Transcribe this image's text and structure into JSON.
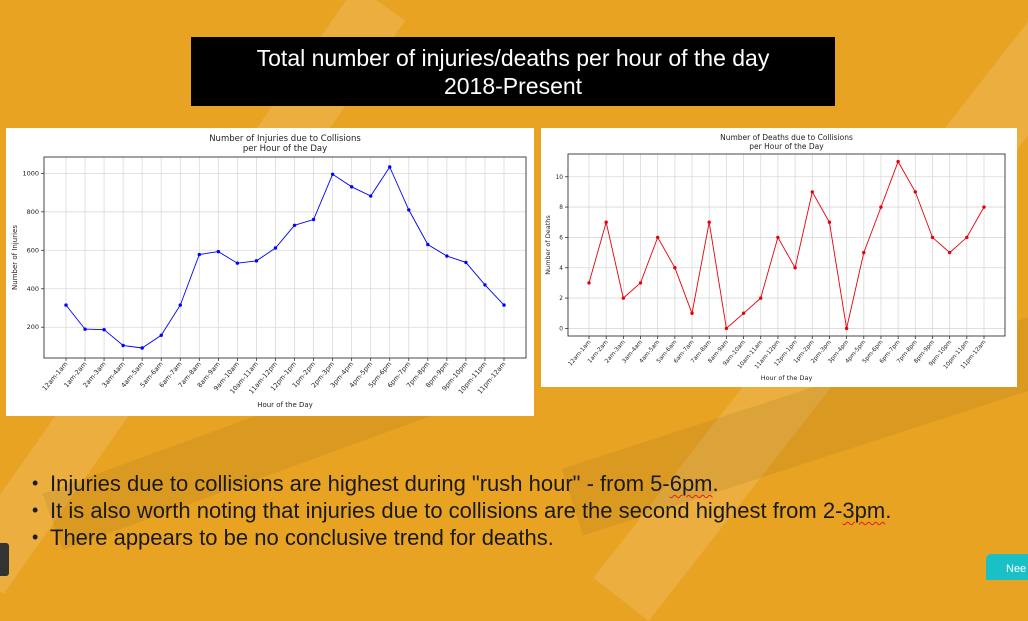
{
  "slide": {
    "title_line1": "Total number of injuries/deaths per hour of the day",
    "title_line2": "2018-Present",
    "bullets": {
      "b1_pre": "Injuries due to collisions are highest during \"rush hour\" - from 5-",
      "b1_mark": "6pm",
      "b1_post": ".",
      "b2_pre": "It is also worth noting that injuries due to collisions are the second highest from 2-",
      "b2_mark": "3pm",
      "b2_post": ".",
      "b3": "There appears to be no conclusive trend for deaths."
    },
    "corner_button_label": "Nee"
  },
  "chart_data": [
    {
      "type": "line",
      "title": "Number of Injuries due to Collisions\nper Hour of the Day",
      "xlabel": "Hour of the Day",
      "ylabel": "Number of Injuries",
      "color": "#0000ff",
      "grid": true,
      "categories": [
        "12am-1am",
        "1am-2am",
        "2am-3am",
        "3am-4am",
        "4am-5am",
        "5am-6am",
        "6am-7am",
        "7am-8am",
        "8am-9am",
        "9am-10am",
        "10am-11am",
        "11am-12pm",
        "12pm-1pm",
        "1pm-2pm",
        "2pm-3pm",
        "3pm-4pm",
        "4pm-5pm",
        "5pm-6pm",
        "6pm-7pm",
        "7pm-8pm",
        "8pm-9pm",
        "9pm-10pm",
        "10pm-11pm",
        "11pm-12am"
      ],
      "values": [
        315,
        190,
        187,
        105,
        92,
        158,
        315,
        578,
        593,
        533,
        545,
        612,
        730,
        760,
        995,
        930,
        882,
        1033,
        810,
        630,
        570,
        537,
        420,
        315
      ],
      "ylim": [
        40,
        1085
      ],
      "yticks": [
        200,
        400,
        600,
        800,
        1000
      ]
    },
    {
      "type": "line",
      "title": "Number of Deaths due to Collisions\nper Hour of the Day",
      "xlabel": "Hour of the Day",
      "ylabel": "Number of Deaths",
      "color": "#e8000b",
      "grid": true,
      "categories": [
        "12am-1am",
        "1am-2am",
        "2am-3am",
        "3am-4am",
        "4am-5am",
        "5am-6am",
        "6am-7am",
        "7am-8am",
        "8am-9am",
        "9am-10am",
        "10am-11am",
        "11am-12pm",
        "12pm-1pm",
        "1pm-2pm",
        "2pm-3pm",
        "3pm-4pm",
        "4pm-5pm",
        "5pm-6pm",
        "6pm-7pm",
        "7pm-8pm",
        "8pm-9pm",
        "9pm-10pm",
        "10pm-11pm",
        "11pm-12am"
      ],
      "values": [
        3,
        7,
        2,
        3,
        6,
        4,
        1,
        7,
        0,
        1,
        2,
        6,
        4,
        9,
        7,
        0,
        5,
        8,
        11,
        9,
        6,
        5,
        6,
        8
      ],
      "ylim": [
        -0.5,
        11.5
      ],
      "yticks": [
        0,
        2,
        4,
        6,
        8,
        10
      ]
    }
  ]
}
